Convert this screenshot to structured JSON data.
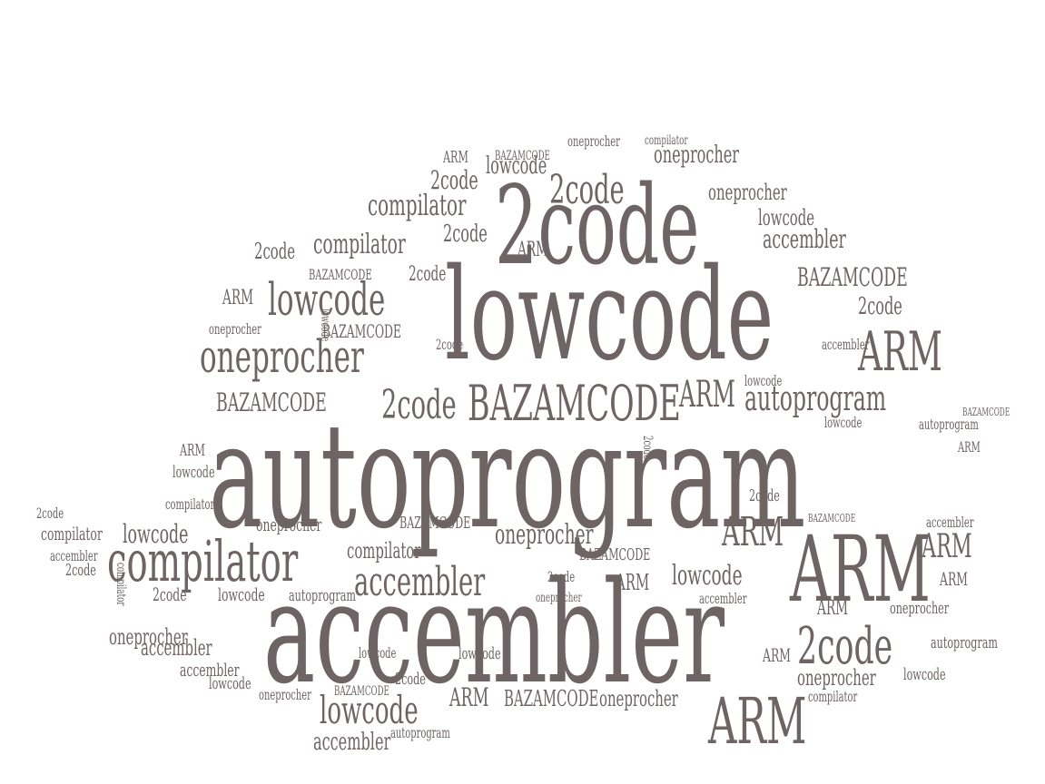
{
  "palette": {
    "text": "#6e6464",
    "background": "#ffffff"
  },
  "words": [
    {
      "text": "autoprogram",
      "rank": 1
    },
    {
      "text": "accembler",
      "rank": 1
    },
    {
      "text": "lowcode",
      "rank": 1
    },
    {
      "text": "2code",
      "rank": 1
    },
    {
      "text": "ARM",
      "rank": 2
    },
    {
      "text": "compilator",
      "rank": 2
    },
    {
      "text": "BAZAMCODE",
      "rank": 2
    },
    {
      "text": "oneprocher",
      "rank": 2
    },
    {
      "text": "2code",
      "rank": 2
    },
    {
      "text": "lowcode",
      "rank": 2
    },
    {
      "text": "ARM",
      "rank": 3
    },
    {
      "text": "autoprogram",
      "rank": 3
    },
    {
      "text": "accembler",
      "rank": 3
    },
    {
      "text": "lowcode",
      "rank": 3
    },
    {
      "text": "2code",
      "rank": 3
    },
    {
      "text": "oneprocher",
      "rank": 3
    },
    {
      "text": "BAZAMCODE",
      "rank": 3
    },
    {
      "text": "compilator",
      "rank": 3
    },
    {
      "text": "ARM",
      "rank": 4
    },
    {
      "text": "lowcode",
      "rank": 4
    },
    {
      "text": "compilator",
      "rank": 4
    },
    {
      "text": "accembler",
      "rank": 4
    },
    {
      "text": "2code",
      "rank": 4
    },
    {
      "text": "autoprogram",
      "rank": 4
    },
    {
      "text": "oneprocher",
      "rank": 4
    },
    {
      "text": "BAZAMCODE",
      "rank": 4
    },
    {
      "text": "ARM",
      "rank": 5
    },
    {
      "text": "lowcode",
      "rank": 5
    },
    {
      "text": "2code",
      "rank": 5
    },
    {
      "text": "accembler",
      "rank": 5
    },
    {
      "text": "autoprogram",
      "rank": 5
    },
    {
      "text": "compilator",
      "rank": 5
    },
    {
      "text": "oneprocher",
      "rank": 5
    },
    {
      "text": "BAZAMCODE",
      "rank": 5
    }
  ]
}
